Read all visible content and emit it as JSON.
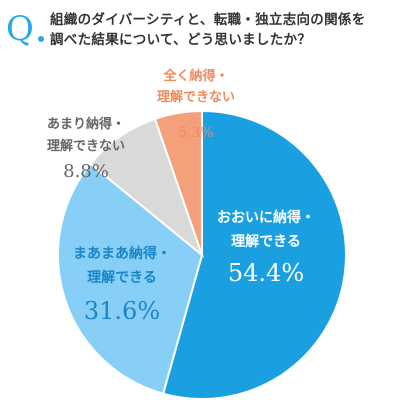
{
  "question": {
    "mark": "Q",
    "line1": "組織のダイバーシティと、転職・独立志向の関係を",
    "line2": "調べた結果について、どう思いましたか？"
  },
  "chart_data": {
    "type": "pie",
    "start": "12 o'clock",
    "direction": "clockwise",
    "slices": [
      {
        "label_line1": "おおいに納得・",
        "label_line2": "理解できる",
        "value": 54.4,
        "value_text": "54.4%",
        "color": "#1aa0e0",
        "label_color": "#ffffff"
      },
      {
        "label_line1": "まあまあ納得・",
        "label_line2": "理解できる",
        "value": 31.6,
        "value_text": "31.6%",
        "color": "#87cff7",
        "label_color": "#1a86c8"
      },
      {
        "label_line1": "あまり納得・",
        "label_line2": "理解できない",
        "value": 8.8,
        "value_text": "8.8%",
        "color": "#d9d9d9",
        "label_color": "#666666"
      },
      {
        "label_line1": "全く納得・",
        "label_line2": "理解できない",
        "value": 5.3,
        "value_text": "5.3%",
        "color": "#f3a07b",
        "label_color": "#f08a5d"
      }
    ]
  }
}
